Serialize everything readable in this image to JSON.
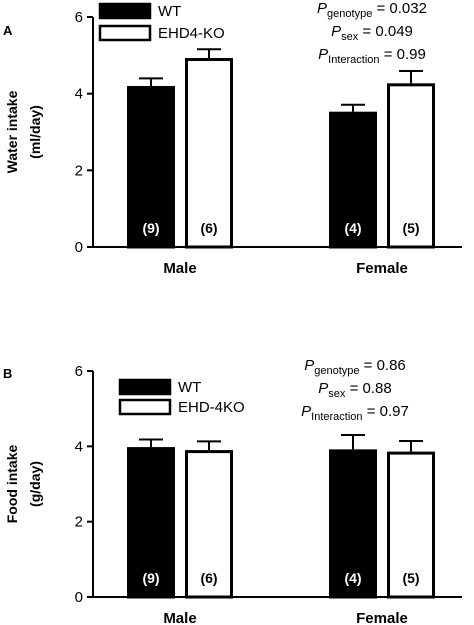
{
  "chart_data": [
    {
      "type": "bar",
      "panel_label": "A",
      "categories": [
        "Male",
        "Female"
      ],
      "ylabel": [
        "Water intake",
        "(ml/day)"
      ],
      "xlabel": "",
      "ylim": [
        0,
        6
      ],
      "yticks": [
        "0",
        "2",
        "4",
        "6"
      ],
      "series": [
        {
          "name": "WT",
          "values": [
            4.2,
            3.53
          ],
          "errors": [
            0.2,
            0.18
          ],
          "n_labels": [
            "(9)",
            "(4)"
          ]
        },
        {
          "name": "EHD4-KO",
          "values": [
            4.93,
            4.27
          ],
          "errors": [
            0.23,
            0.32
          ],
          "n_labels": [
            "(6)",
            "(5)"
          ]
        }
      ],
      "legend_position": "top-left",
      "stats": [
        {
          "p": "P",
          "sub": "genotype",
          "value": " = 0.032"
        },
        {
          "p": "P",
          "sub": "sex",
          "value": " = 0.049"
        },
        {
          "p": "P",
          "sub": "Interaction",
          "value": " = 0.99"
        }
      ],
      "colors": {
        "WT": "#000000",
        "KO": "#ffffff"
      }
    },
    {
      "type": "bar",
      "panel_label": "B",
      "categories": [
        "Male",
        "Female"
      ],
      "ylabel": [
        "Food intake",
        "(g/day)"
      ],
      "xlabel": "",
      "ylim": [
        0,
        6
      ],
      "yticks": [
        "0",
        "2",
        "4",
        "6"
      ],
      "series": [
        {
          "name": "WT",
          "values": [
            3.98,
            3.92
          ],
          "errors": [
            0.2,
            0.38
          ],
          "n_labels": [
            "(9)",
            "(4)"
          ]
        },
        {
          "name": "EHD-4KO",
          "values": [
            3.9,
            3.86
          ],
          "errors": [
            0.23,
            0.28
          ],
          "n_labels": [
            "(6)",
            "(5)"
          ]
        }
      ],
      "legend_position": "top-left",
      "stats": [
        {
          "p": "P",
          "sub": "genotype",
          "value": " = 0.86"
        },
        {
          "p": "P",
          "sub": "sex",
          "value": " = 0.88"
        },
        {
          "p": "P",
          "sub": "Interaction",
          "value": " = 0.97"
        }
      ],
      "colors": {
        "WT": "#000000",
        "KO": "#ffffff"
      }
    }
  ]
}
